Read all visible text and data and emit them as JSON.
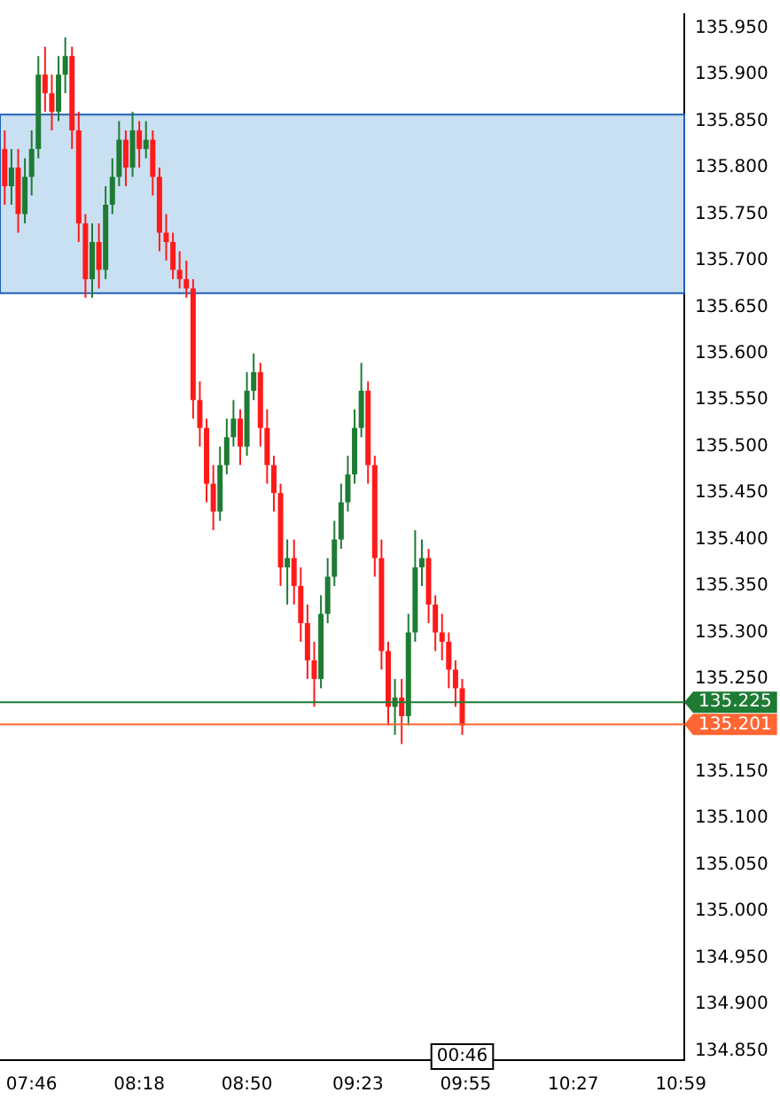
{
  "chart_data": {
    "type": "candlestick",
    "x": [
      7.6333,
      7.6667,
      7.7,
      7.7333,
      7.7667,
      7.8,
      7.8333,
      7.8667,
      7.9,
      7.9333,
      7.9667,
      8.0,
      8.0333,
      8.0667,
      8.1,
      8.1333,
      8.1667,
      8.2,
      8.2333,
      8.2667,
      8.3,
      8.3333,
      8.3667,
      8.4,
      8.4333,
      8.4667,
      8.5,
      8.5333,
      8.5667,
      8.6,
      8.6333,
      8.6667,
      8.7,
      8.7333,
      8.7667,
      8.8,
      8.8333,
      8.8667,
      8.9,
      8.9333,
      8.9667,
      9.0,
      9.0333,
      9.0667,
      9.1,
      9.1333,
      9.1667,
      9.2,
      9.2333,
      9.2667,
      9.3,
      9.3333,
      9.3667,
      9.4,
      9.4333,
      9.4667,
      9.5,
      9.5333,
      9.5667,
      9.6,
      9.6333,
      9.6667,
      9.7,
      9.7333,
      9.7667,
      9.8,
      9.8333,
      9.8667,
      9.9
    ],
    "ohlc": [
      [
        135.82,
        135.84,
        135.76,
        135.78
      ],
      [
        135.78,
        135.82,
        135.76,
        135.8
      ],
      [
        135.8,
        135.82,
        135.73,
        135.75
      ],
      [
        135.75,
        135.81,
        135.74,
        135.79
      ],
      [
        135.79,
        135.84,
        135.77,
        135.82
      ],
      [
        135.82,
        135.92,
        135.81,
        135.9
      ],
      [
        135.9,
        135.93,
        135.86,
        135.88
      ],
      [
        135.88,
        135.9,
        135.84,
        135.86
      ],
      [
        135.86,
        135.92,
        135.85,
        135.9
      ],
      [
        135.9,
        135.94,
        135.88,
        135.92
      ],
      [
        135.92,
        135.93,
        135.82,
        135.84
      ],
      [
        135.84,
        135.86,
        135.72,
        135.74
      ],
      [
        135.74,
        135.75,
        135.66,
        135.68
      ],
      [
        135.68,
        135.74,
        135.66,
        135.72
      ],
      [
        135.72,
        135.74,
        135.67,
        135.69
      ],
      [
        135.69,
        135.78,
        135.68,
        135.76
      ],
      [
        135.76,
        135.81,
        135.75,
        135.79
      ],
      [
        135.79,
        135.85,
        135.78,
        135.83
      ],
      [
        135.83,
        135.84,
        135.78,
        135.8
      ],
      [
        135.8,
        135.86,
        135.79,
        135.84
      ],
      [
        135.84,
        135.85,
        135.8,
        135.82
      ],
      [
        135.82,
        135.85,
        135.81,
        135.83
      ],
      [
        135.83,
        135.84,
        135.77,
        135.79
      ],
      [
        135.79,
        135.8,
        135.71,
        135.73
      ],
      [
        135.73,
        135.75,
        135.7,
        135.72
      ],
      [
        135.72,
        135.73,
        135.68,
        135.69
      ],
      [
        135.69,
        135.71,
        135.67,
        135.68
      ],
      [
        135.68,
        135.7,
        135.66,
        135.67
      ],
      [
        135.67,
        135.68,
        135.53,
        135.55
      ],
      [
        135.55,
        135.57,
        135.5,
        135.52
      ],
      [
        135.52,
        135.53,
        135.44,
        135.46
      ],
      [
        135.46,
        135.48,
        135.41,
        135.43
      ],
      [
        135.43,
        135.5,
        135.42,
        135.48
      ],
      [
        135.48,
        135.53,
        135.47,
        135.51
      ],
      [
        135.51,
        135.55,
        135.5,
        135.53
      ],
      [
        135.53,
        135.54,
        135.48,
        135.5
      ],
      [
        135.5,
        135.58,
        135.49,
        135.56
      ],
      [
        135.56,
        135.6,
        135.55,
        135.58
      ],
      [
        135.58,
        135.59,
        135.5,
        135.52
      ],
      [
        135.52,
        135.54,
        135.46,
        135.48
      ],
      [
        135.48,
        135.49,
        135.43,
        135.45
      ],
      [
        135.45,
        135.46,
        135.35,
        135.37
      ],
      [
        135.37,
        135.4,
        135.33,
        135.38
      ],
      [
        135.38,
        135.4,
        135.33,
        135.35
      ],
      [
        135.35,
        135.37,
        135.29,
        135.31
      ],
      [
        135.31,
        135.33,
        135.25,
        135.27
      ],
      [
        135.27,
        135.29,
        135.22,
        135.25
      ],
      [
        135.25,
        135.34,
        135.24,
        135.32
      ],
      [
        135.32,
        135.38,
        135.31,
        135.36
      ],
      [
        135.36,
        135.42,
        135.35,
        135.4
      ],
      [
        135.4,
        135.46,
        135.39,
        135.44
      ],
      [
        135.44,
        135.49,
        135.43,
        135.47
      ],
      [
        135.47,
        135.54,
        135.46,
        135.52
      ],
      [
        135.52,
        135.59,
        135.51,
        135.56
      ],
      [
        135.56,
        135.57,
        135.46,
        135.48
      ],
      [
        135.48,
        135.49,
        135.36,
        135.38
      ],
      [
        135.38,
        135.4,
        135.26,
        135.28
      ],
      [
        135.28,
        135.29,
        135.2,
        135.22
      ],
      [
        135.22,
        135.25,
        135.19,
        135.23
      ],
      [
        135.23,
        135.25,
        135.18,
        135.21
      ],
      [
        135.21,
        135.32,
        135.2,
        135.3
      ],
      [
        135.3,
        135.41,
        135.29,
        135.37
      ],
      [
        135.37,
        135.4,
        135.35,
        135.38
      ],
      [
        135.38,
        135.39,
        135.31,
        135.33
      ],
      [
        135.33,
        135.34,
        135.28,
        135.3
      ],
      [
        135.3,
        135.32,
        135.27,
        135.29
      ],
      [
        135.29,
        135.3,
        135.24,
        135.26
      ],
      [
        135.26,
        135.27,
        135.22,
        135.24
      ],
      [
        135.24,
        135.25,
        135.19,
        135.2
      ]
    ],
    "colors": [
      "#ff1a1a",
      "#1e7b34",
      "#ff1a1a",
      "#1e7b34",
      "#1e7b34",
      "#1e7b34",
      "#ff1a1a",
      "#ff1a1a",
      "#1e7b34",
      "#1e7b34",
      "#ff1a1a",
      "#ff1a1a",
      "#ff1a1a",
      "#1e7b34",
      "#ff1a1a",
      "#1e7b34",
      "#1e7b34",
      "#1e7b34",
      "#ff1a1a",
      "#1e7b34",
      "#ff1a1a",
      "#1e7b34",
      "#ff1a1a",
      "#ff1a1a",
      "#ff1a1a",
      "#ff1a1a",
      "#ff1a1a",
      "#ff1a1a",
      "#ff1a1a",
      "#ff1a1a",
      "#ff1a1a",
      "#ff1a1a",
      "#1e7b34",
      "#1e7b34",
      "#1e7b34",
      "#ff1a1a",
      "#1e7b34",
      "#1e7b34",
      "#ff1a1a",
      "#ff1a1a",
      "#ff1a1a",
      "#ff1a1a",
      "#1e7b34",
      "#ff1a1a",
      "#ff1a1a",
      "#ff1a1a",
      "#ff1a1a",
      "#1e7b34",
      "#1e7b34",
      "#1e7b34",
      "#1e7b34",
      "#1e7b34",
      "#1e7b34",
      "#1e7b34",
      "#ff1a1a",
      "#ff1a1a",
      "#ff1a1a",
      "#ff1a1a",
      "#1e7b34",
      "#ff1a1a",
      "#1e7b34",
      "#1e7b34",
      "#1e7b34",
      "#ff1a1a",
      "#ff1a1a",
      "#ff1a1a",
      "#ff1a1a",
      "#ff1a1a",
      "#ff1a1a"
    ],
    "xlim": [
      7.61,
      11.0
    ],
    "xticks": [
      {
        "value": 7.7667,
        "label": "07:46"
      },
      {
        "value": 8.3,
        "label": "08:18"
      },
      {
        "value": 8.8333,
        "label": "08:50"
      },
      {
        "value": 9.3833,
        "label": "09:23"
      },
      {
        "value": 9.9167,
        "label": "09:55"
      },
      {
        "value": 10.45,
        "label": "10:27"
      },
      {
        "value": 10.9833,
        "label": "10:59"
      }
    ],
    "ylim": [
      134.84,
      135.965
    ],
    "yticks": [
      {
        "value": 134.85,
        "label": "134.850"
      },
      {
        "value": 134.9,
        "label": "134.900"
      },
      {
        "value": 134.95,
        "label": "134.950"
      },
      {
        "value": 135.0,
        "label": "135.000"
      },
      {
        "value": 135.05,
        "label": "135.050"
      },
      {
        "value": 135.1,
        "label": "135.100"
      },
      {
        "value": 135.15,
        "label": "135.150"
      },
      {
        "value": 135.2,
        "label": null
      },
      {
        "value": 135.25,
        "label": "135.250"
      },
      {
        "value": 135.3,
        "label": "135.300"
      },
      {
        "value": 135.35,
        "label": "135.350"
      },
      {
        "value": 135.4,
        "label": "135.400"
      },
      {
        "value": 135.45,
        "label": "135.450"
      },
      {
        "value": 135.5,
        "label": "135.500"
      },
      {
        "value": 135.55,
        "label": "135.550"
      },
      {
        "value": 135.6,
        "label": "135.600"
      },
      {
        "value": 135.65,
        "label": "135.650"
      },
      {
        "value": 135.7,
        "label": "135.700"
      },
      {
        "value": 135.75,
        "label": "135.750"
      },
      {
        "value": 135.8,
        "label": "135.800"
      },
      {
        "value": 135.85,
        "label": "135.850"
      },
      {
        "value": 135.9,
        "label": "135.900"
      },
      {
        "value": 135.95,
        "label": "135.950"
      }
    ],
    "ref_lines": [
      {
        "axis": "y",
        "value": 135.225,
        "label": "135.225",
        "color": "#1e7b34"
      },
      {
        "axis": "y",
        "value": 135.201,
        "label": "135.201",
        "color": "#ff6633"
      }
    ],
    "bands": [
      {
        "axis": "y",
        "from": 135.665,
        "to": 135.857,
        "color": "#bcd8ef"
      }
    ],
    "annotations": [
      "00:46"
    ],
    "grid": false,
    "legend": false
  }
}
